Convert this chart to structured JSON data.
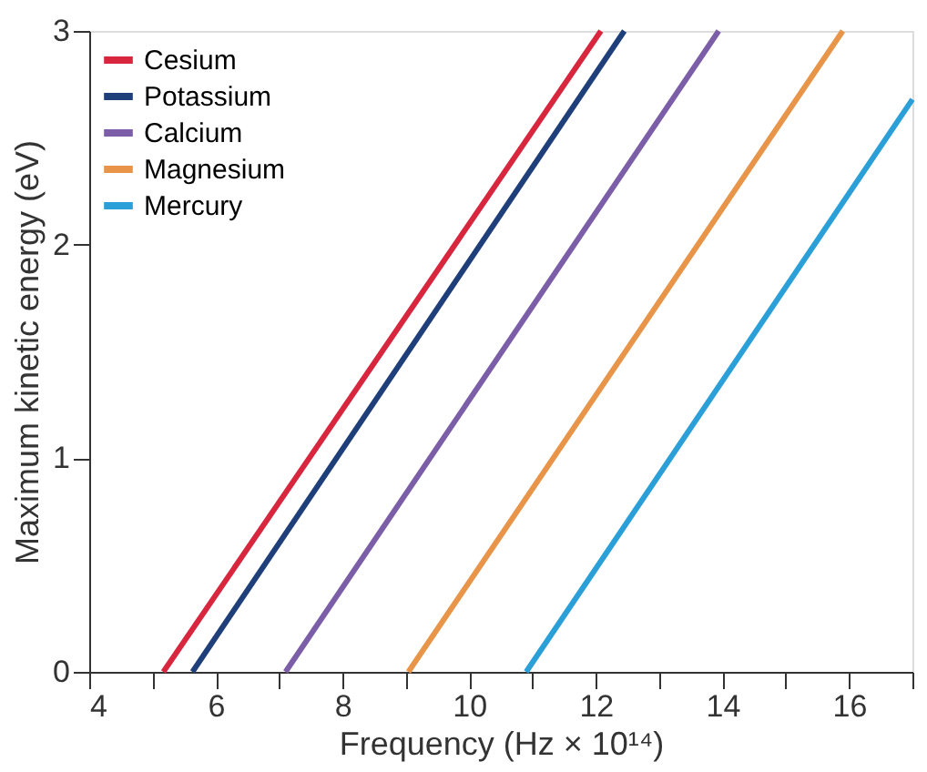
{
  "chart_data": {
    "type": "line",
    "xlabel": "Frequency (Hz × 10¹⁴)",
    "ylabel": "Maximum kinetic energy (eV)",
    "xlim": [
      4,
      17
    ],
    "ylim": [
      0,
      3
    ],
    "xticks": [
      4,
      {
        "value": 5,
        "label": null
      },
      6,
      {
        "value": 7,
        "label": null
      },
      8,
      {
        "value": 9,
        "label": null
      },
      10,
      {
        "value": 11,
        "label": null
      },
      12,
      {
        "value": 13,
        "label": null
      },
      14,
      {
        "value": 15,
        "label": null
      },
      16,
      {
        "value": 17,
        "label": null
      }
    ],
    "yticks": [
      0,
      1,
      2,
      3
    ],
    "grid": false,
    "legend": "top left",
    "marker": "none",
    "line_style": "solid",
    "series": [
      {
        "name": "Cesium",
        "color": "#d7263d",
        "x": [
          5.17,
          12.08
        ],
        "values": [
          0,
          3
        ]
      },
      {
        "name": "Potassium",
        "color": "#1f3f7a",
        "x": [
          5.63,
          12.45
        ],
        "values": [
          0,
          3
        ]
      },
      {
        "name": "Calcium",
        "color": "#7b5ea7",
        "x": [
          7.1,
          13.94
        ],
        "values": [
          0,
          3
        ]
      },
      {
        "name": "Magnesium",
        "color": "#e8954a",
        "x": [
          9.04,
          15.9
        ],
        "values": [
          0,
          3
        ]
      },
      {
        "name": "Mercury",
        "color": "#2a9fd8",
        "x": [
          10.9,
          17
        ],
        "values": [
          0,
          2.68
        ]
      }
    ]
  }
}
